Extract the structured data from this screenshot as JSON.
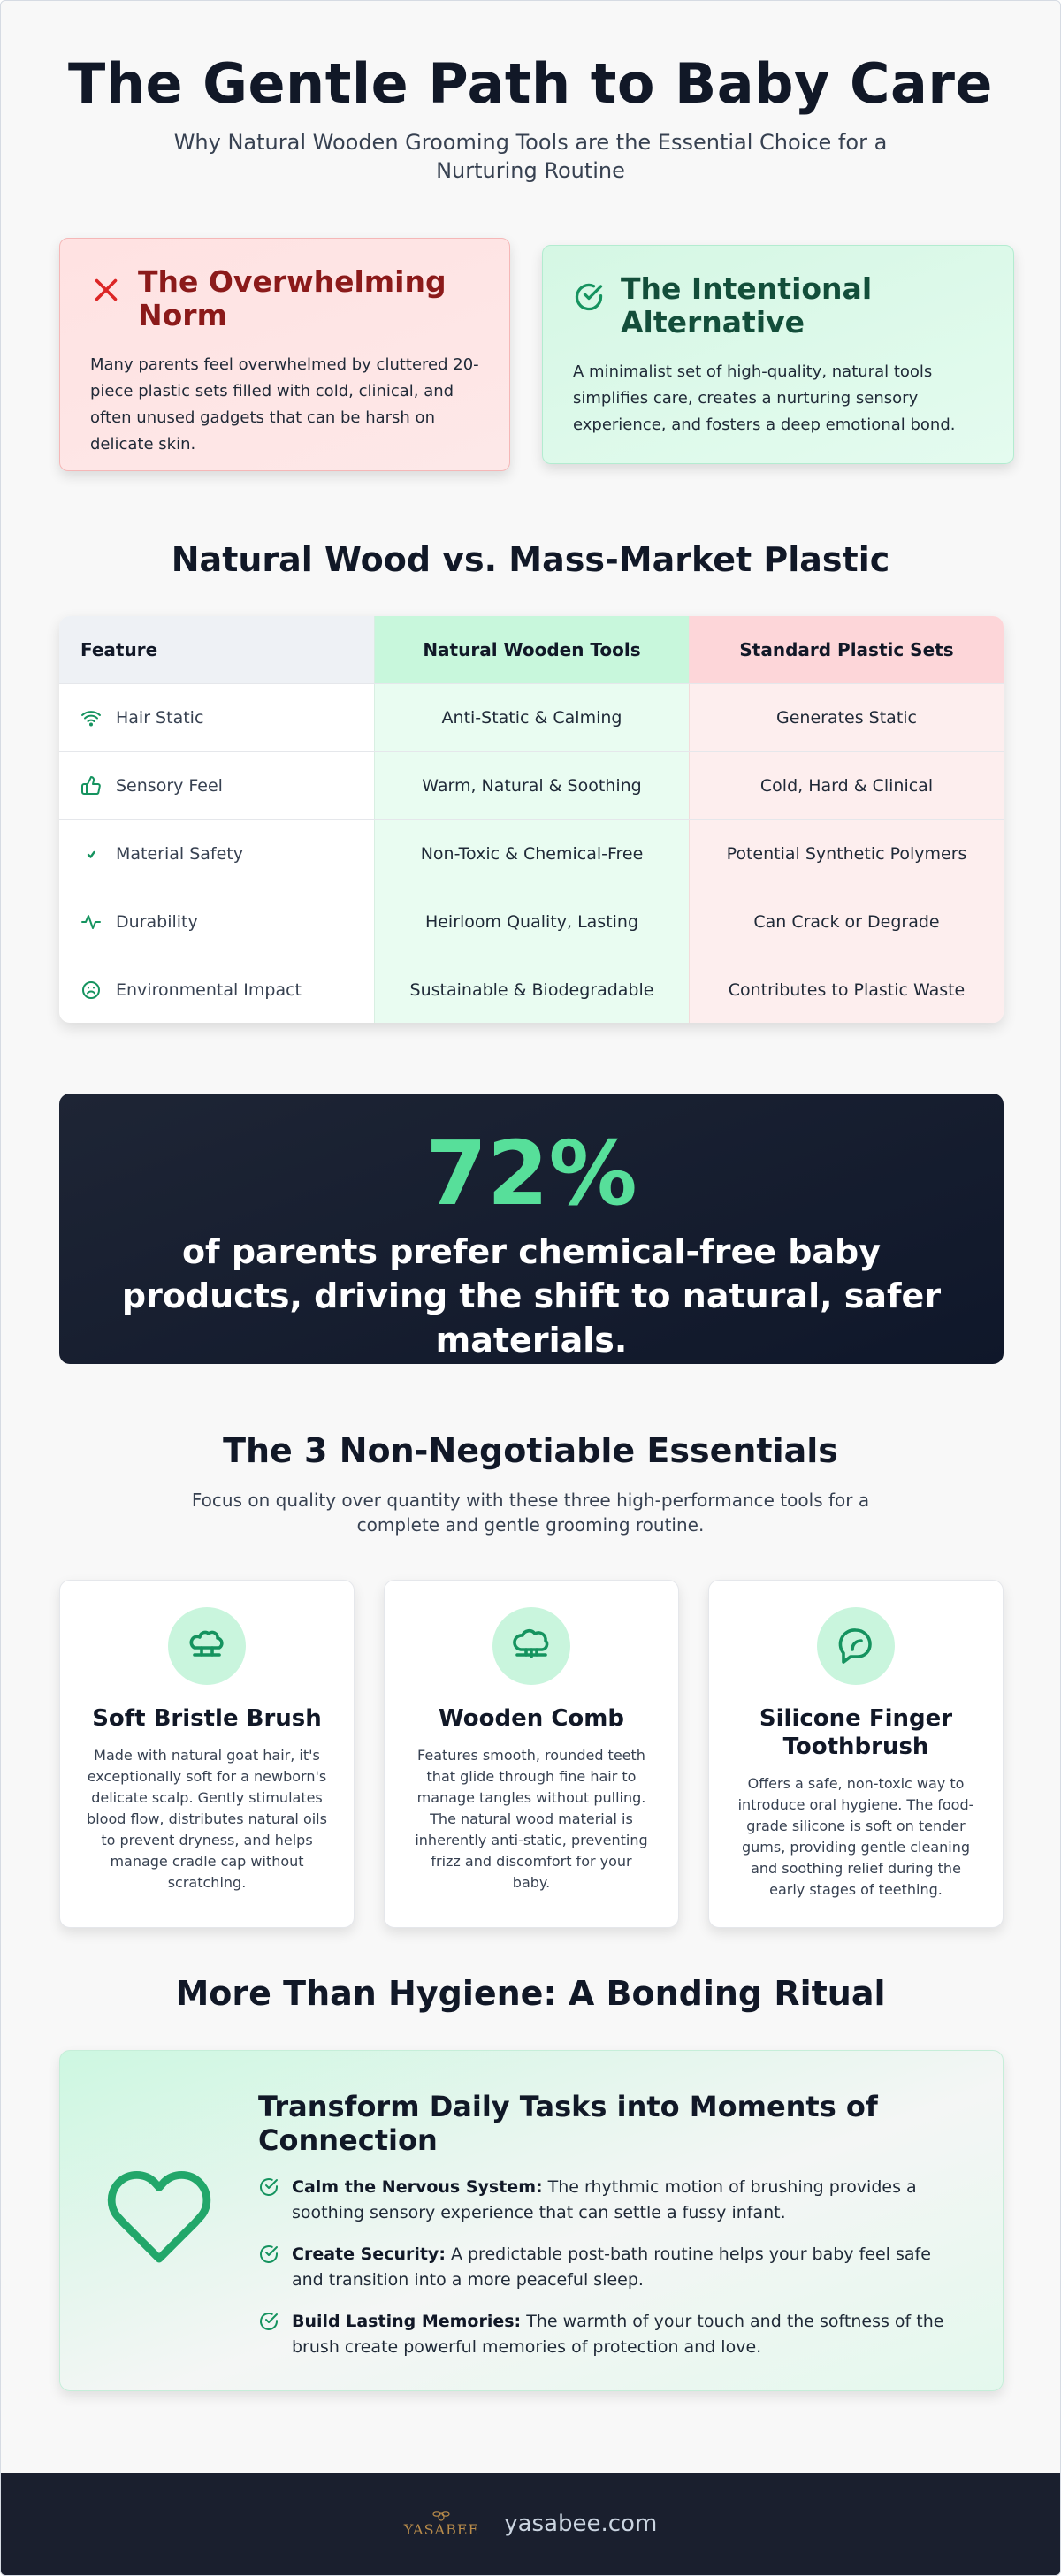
{
  "hero": {
    "title": "The Gentle Path to Baby Care",
    "subtitle": "Why Natural Wooden Grooming Tools are the Essential Choice for a Nurturing Routine"
  },
  "contrast": {
    "norm": {
      "icon": "x-icon",
      "title": "The Overwhelming Norm",
      "body": "Many parents feel overwhelmed by cluttered 20-piece plastic sets filled with cold, clinical, and often unused gadgets that can be harsh on delicate skin."
    },
    "alternative": {
      "icon": "check-circle-icon",
      "title": "The Intentional Alternative",
      "body": "A minimalist set of high-quality, natural tools simplifies care, creates a nurturing sensory experience, and fosters a deep emotional bond."
    }
  },
  "comparison": {
    "heading": "Natural Wood vs. Mass-Market Plastic",
    "columns": [
      "Feature",
      "Natural Wooden Tools",
      "Standard Plastic Sets"
    ],
    "rows": [
      {
        "feature": "Hair Static",
        "icon": "wifi-icon",
        "wood": "Anti-Static & Calming",
        "plastic": "Generates Static"
      },
      {
        "feature": "Sensory Feel",
        "icon": "thumbs-up-icon",
        "wood": "Warm, Natural & Soothing",
        "plastic": "Cold, Hard & Clinical"
      },
      {
        "feature": "Material Safety",
        "icon": "check-icon",
        "wood": "Non-Toxic & Chemical-Free",
        "plastic": "Potential Synthetic Polymers"
      },
      {
        "feature": "Durability",
        "icon": "pulse-icon",
        "wood": "Heirloom Quality, Lasting",
        "plastic": "Can Crack or Degrade"
      },
      {
        "feature": "Environmental Impact",
        "icon": "smile-icon",
        "wood": "Sustainable & Biodegradable",
        "plastic": "Contributes to Plastic Waste"
      }
    ]
  },
  "stat": {
    "value": "72%",
    "text": "of parents prefer chemical-free baby products, driving the shift to natural, safer materials."
  },
  "essentials": {
    "heading": "The 3 Non-Negotiable Essentials",
    "subtitle": "Focus on quality over quantity with these three high-performance tools for a complete and gentle grooming routine.",
    "items": [
      {
        "icon": "brush-icon",
        "title": "Soft Bristle Brush",
        "body": "Made with natural goat hair, it's exceptionally soft for a newborn's delicate scalp. Gently stimulates blood flow, distributes natural oils to prevent dryness, and helps manage cradle cap without scratching."
      },
      {
        "icon": "comb-icon",
        "title": "Wooden Comb",
        "body": "Features smooth, rounded teeth that glide through fine hair to manage tangles without pulling. The natural wood material is inherently anti-static, preventing frizz and discomfort for your baby."
      },
      {
        "icon": "leaf-icon",
        "title": "Silicone Finger Toothbrush",
        "body": "Offers a safe, non-toxic way to introduce oral hygiene. The food-grade silicone is soft on tender gums, providing gentle cleaning and soothing relief during the early stages of teething."
      }
    ]
  },
  "bonding": {
    "heading": "More Than Hygiene: A Bonding Ritual",
    "title": "Transform Daily Tasks into Moments of Connection",
    "items": [
      {
        "label": "Calm the Nervous System:",
        "text": " The rhythmic motion of brushing provides a soothing sensory experience that can settle a fussy infant."
      },
      {
        "label": "Create Security:",
        "text": " A predictable post-bath routine helps your baby feel safe and transition into a more peaceful sleep."
      },
      {
        "label": "Build Lasting Memories:",
        "text": " The warmth of your touch and the softness of the brush create powerful memories of protection and love."
      }
    ]
  },
  "footer": {
    "logo_text": "YASABEE",
    "site": "yasabee.com"
  },
  "colors": {
    "accent_green": "#57df9a",
    "dark_navy": "#0f172a",
    "norm_red": "#8b1a1a",
    "alt_green": "#134e3a"
  }
}
